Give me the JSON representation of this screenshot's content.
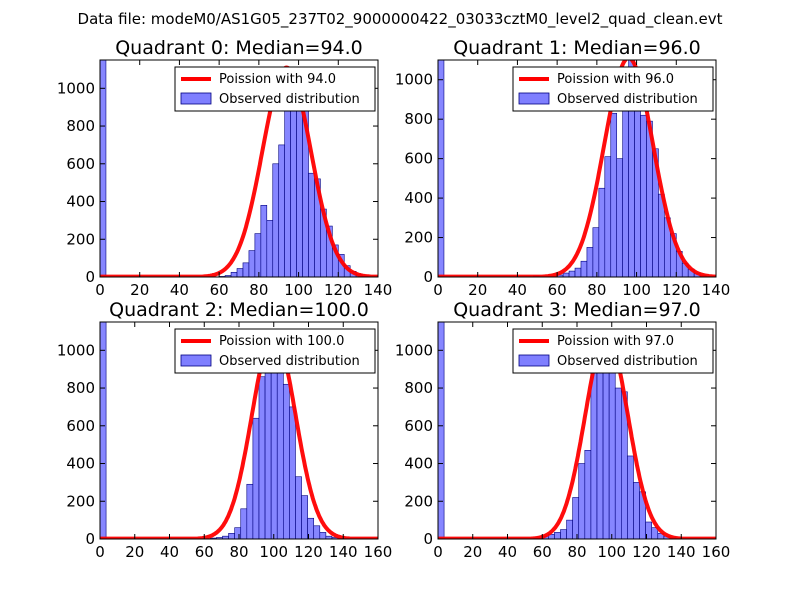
{
  "suptitle": "Data file: modeM0/AS1G05_237T02_9000000422_03033cztM0_level2_quad_clean.evt",
  "colors": {
    "fit": "#ff0000",
    "bars": "#7f7fff",
    "bar_edge": "#00007f"
  },
  "chart_data": [
    {
      "type": "bar",
      "title": "Quadrant 0: Median=94.0",
      "median": 94.0,
      "xlim": [
        0,
        140
      ],
      "ylim": [
        0,
        1150
      ],
      "xticks": [
        0,
        20,
        40,
        60,
        80,
        100,
        120,
        140
      ],
      "yticks": [
        0,
        200,
        400,
        600,
        800,
        1000
      ],
      "legend": {
        "position": "top-right",
        "fit_label": "Poission with 94.0",
        "hist_label": "Observed distribution"
      },
      "zero_bin": 1150,
      "bin_width": 3,
      "bins": [
        [
          60,
          3
        ],
        [
          63,
          8
        ],
        [
          66,
          25
        ],
        [
          69,
          45
        ],
        [
          72,
          75
        ],
        [
          75,
          140
        ],
        [
          78,
          230
        ],
        [
          81,
          380
        ],
        [
          84,
          300
        ],
        [
          87,
          600
        ],
        [
          90,
          700
        ],
        [
          93,
          1060
        ],
        [
          96,
          900
        ],
        [
          99,
          1050
        ],
        [
          102,
          950
        ],
        [
          105,
          550
        ],
        [
          108,
          520
        ],
        [
          111,
          360
        ],
        [
          114,
          270
        ],
        [
          117,
          170
        ],
        [
          120,
          120
        ],
        [
          123,
          60
        ],
        [
          126,
          30
        ],
        [
          129,
          15
        ],
        [
          132,
          5
        ]
      ],
      "fit_scale": 1110
    },
    {
      "type": "bar",
      "title": "Quadrant 1: Median=96.0",
      "median": 96.0,
      "xlim": [
        0,
        140
      ],
      "ylim": [
        0,
        1100
      ],
      "xticks": [
        0,
        20,
        40,
        60,
        80,
        100,
        120,
        140
      ],
      "yticks": [
        0,
        200,
        400,
        600,
        800,
        1000
      ],
      "legend": {
        "position": "top-right",
        "fit_label": "Poission with 96.0",
        "hist_label": "Observed distribution"
      },
      "zero_bin": 1100,
      "bin_width": 3,
      "bins": [
        [
          48,
          5
        ],
        [
          60,
          10
        ],
        [
          63,
          20
        ],
        [
          66,
          30
        ],
        [
          69,
          45
        ],
        [
          72,
          80
        ],
        [
          75,
          150
        ],
        [
          78,
          250
        ],
        [
          81,
          450
        ],
        [
          84,
          610
        ],
        [
          87,
          830
        ],
        [
          90,
          600
        ],
        [
          93,
          1020
        ],
        [
          96,
          1100
        ],
        [
          99,
          950
        ],
        [
          102,
          820
        ],
        [
          105,
          790
        ],
        [
          108,
          650
        ],
        [
          111,
          420
        ],
        [
          114,
          300
        ],
        [
          117,
          220
        ],
        [
          120,
          130
        ],
        [
          123,
          70
        ],
        [
          126,
          40
        ],
        [
          129,
          20
        ],
        [
          132,
          8
        ]
      ],
      "fit_scale": 1110
    },
    {
      "type": "bar",
      "title": "Quadrant 2: Median=100.0",
      "median": 100.0,
      "xlim": [
        0,
        160
      ],
      "ylim": [
        0,
        1150
      ],
      "xticks": [
        0,
        20,
        40,
        60,
        80,
        100,
        120,
        140,
        160
      ],
      "yticks": [
        0,
        200,
        400,
        600,
        800,
        1000
      ],
      "legend": {
        "position": "top-right",
        "fit_label": "Poission with 100.0",
        "hist_label": "Observed distribution"
      },
      "zero_bin": 1150,
      "bin_width": 3.5,
      "bins": [
        [
          63.5,
          5
        ],
        [
          67,
          8
        ],
        [
          70.5,
          15
        ],
        [
          74,
          30
        ],
        [
          77.5,
          60
        ],
        [
          81,
          160
        ],
        [
          84.5,
          290
        ],
        [
          88,
          640
        ],
        [
          91.5,
          860
        ],
        [
          95,
          1020
        ],
        [
          98.5,
          1080
        ],
        [
          102,
          970
        ],
        [
          105.5,
          820
        ],
        [
          109,
          700
        ],
        [
          112.5,
          330
        ],
        [
          116,
          230
        ],
        [
          119.5,
          110
        ],
        [
          123,
          70
        ],
        [
          126.5,
          35
        ],
        [
          130,
          15
        ],
        [
          133.5,
          8
        ],
        [
          137,
          3
        ]
      ],
      "fit_scale": 1090
    },
    {
      "type": "bar",
      "title": "Quadrant 3: Median=97.0",
      "median": 97.0,
      "xlim": [
        0,
        160
      ],
      "ylim": [
        0,
        1150
      ],
      "xticks": [
        0,
        20,
        40,
        60,
        80,
        100,
        120,
        140,
        160
      ],
      "yticks": [
        0,
        200,
        400,
        600,
        800,
        1000
      ],
      "legend": {
        "position": "top-right",
        "fit_label": "Poission with 97.0",
        "hist_label": "Observed distribution"
      },
      "zero_bin": 1150,
      "bin_width": 3.5,
      "bins": [
        [
          55,
          5
        ],
        [
          60,
          15
        ],
        [
          63.5,
          25
        ],
        [
          67,
          35
        ],
        [
          70.5,
          50
        ],
        [
          74,
          100
        ],
        [
          77.5,
          220
        ],
        [
          81,
          400
        ],
        [
          84.5,
          470
        ],
        [
          88,
          880
        ],
        [
          91.5,
          1020
        ],
        [
          95,
          1080
        ],
        [
          98.5,
          1050
        ],
        [
          102,
          800
        ],
        [
          105.5,
          780
        ],
        [
          109,
          440
        ],
        [
          112.5,
          300
        ],
        [
          116,
          250
        ],
        [
          119.5,
          90
        ],
        [
          123,
          60
        ],
        [
          126.5,
          30
        ],
        [
          130,
          15
        ],
        [
          133.5,
          8
        ]
      ],
      "fit_scale": 1080
    }
  ]
}
